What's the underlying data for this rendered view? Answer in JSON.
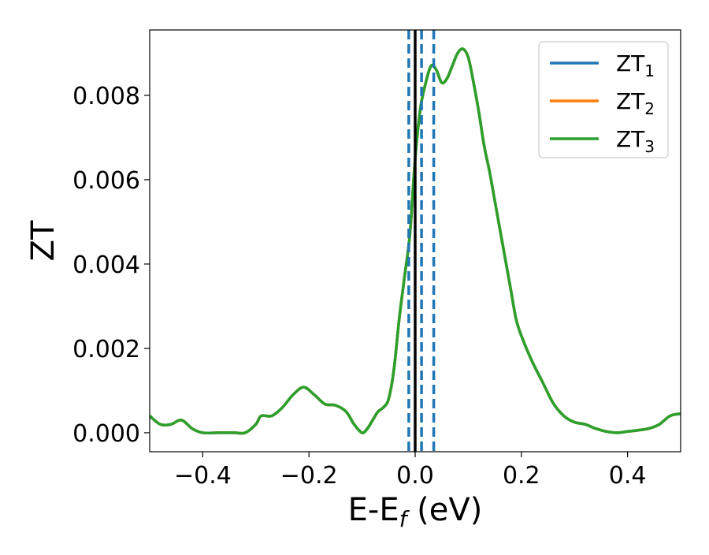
{
  "chart_data": {
    "type": "line",
    "title": "",
    "xlabel": "E-E",
    "xlabel_sub": "f",
    "xlabel_unit": " (eV)",
    "ylabel": "ZT",
    "xlim": [
      -0.5,
      0.5
    ],
    "ylim": [
      -0.00045,
      0.00955
    ],
    "x_ticks": [
      -0.4,
      -0.2,
      0.0,
      0.2,
      0.4
    ],
    "x_tick_labels": [
      "−0.4",
      "−0.2",
      "0.0",
      "0.2",
      "0.4"
    ],
    "y_ticks": [
      0.0,
      0.002,
      0.004,
      0.006,
      0.008
    ],
    "y_tick_labels": [
      "0.000",
      "0.002",
      "0.004",
      "0.006",
      "0.008"
    ],
    "grid": false,
    "legend": {
      "placement": "top-right"
    },
    "vertical_lines": [
      {
        "x": 0.0,
        "style": "solid",
        "color": "#000000"
      },
      {
        "x": -0.012,
        "style": "dashed",
        "color": "#1f77b4"
      },
      {
        "x": 0.012,
        "style": "dashed",
        "color": "#1f77b4"
      },
      {
        "x": 0.035,
        "style": "dashed",
        "color": "#1f77b4"
      }
    ],
    "series": [
      {
        "name": "ZT",
        "name_sub": "1",
        "color": "#1f77b4",
        "x": [
          -0.5,
          -0.48,
          -0.46,
          -0.44,
          -0.42,
          -0.4,
          -0.37,
          -0.34,
          -0.32,
          -0.3,
          -0.29,
          -0.27,
          -0.25,
          -0.23,
          -0.21,
          -0.19,
          -0.17,
          -0.15,
          -0.13,
          -0.115,
          -0.1,
          -0.09,
          -0.08,
          -0.07,
          -0.06,
          -0.05,
          -0.04,
          -0.03,
          -0.02,
          -0.01,
          0.0,
          0.01,
          0.02,
          0.03,
          0.04,
          0.05,
          0.06,
          0.07,
          0.08,
          0.09,
          0.1,
          0.11,
          0.12,
          0.13,
          0.14,
          0.15,
          0.16,
          0.17,
          0.18,
          0.19,
          0.2,
          0.22,
          0.24,
          0.26,
          0.28,
          0.3,
          0.32,
          0.34,
          0.36,
          0.38,
          0.4,
          0.42,
          0.44,
          0.46,
          0.48,
          0.5
        ],
        "y": [
          0.0004,
          0.0002,
          0.0002,
          0.0003,
          0.0001,
          0.0,
          0.0,
          0.0,
          0.0,
          0.0002,
          0.0004,
          0.0004,
          0.0006,
          0.0009,
          0.00108,
          0.0009,
          0.00068,
          0.00065,
          0.0005,
          0.0002,
          0.0,
          0.0001,
          0.0003,
          0.0005,
          0.0006,
          0.0008,
          0.0015,
          0.0027,
          0.0037,
          0.0047,
          0.0065,
          0.0077,
          0.0083,
          0.0087,
          0.0086,
          0.0083,
          0.0084,
          0.0087,
          0.009,
          0.0091,
          0.0089,
          0.0083,
          0.0076,
          0.0068,
          0.0062,
          0.0055,
          0.0048,
          0.0041,
          0.0034,
          0.0027,
          0.0023,
          0.0017,
          0.0012,
          0.0007,
          0.0004,
          0.00025,
          0.0002,
          0.0001,
          3e-05,
          0.0,
          3e-05,
          6e-05,
          0.0001,
          0.0002,
          0.0004,
          0.00045
        ]
      },
      {
        "name": "ZT",
        "name_sub": "2",
        "color": "#ff7f0e",
        "x": [
          -0.5,
          -0.48,
          -0.46,
          -0.44,
          -0.42,
          -0.4,
          -0.37,
          -0.34,
          -0.32,
          -0.3,
          -0.29,
          -0.27,
          -0.25,
          -0.23,
          -0.21,
          -0.19,
          -0.17,
          -0.15,
          -0.13,
          -0.115,
          -0.1,
          -0.09,
          -0.08,
          -0.07,
          -0.06,
          -0.05,
          -0.04,
          -0.03,
          -0.02,
          -0.01,
          0.0,
          0.01,
          0.02,
          0.03,
          0.04,
          0.05,
          0.06,
          0.07,
          0.08,
          0.09,
          0.1,
          0.11,
          0.12,
          0.13,
          0.14,
          0.15,
          0.16,
          0.17,
          0.18,
          0.19,
          0.2,
          0.22,
          0.24,
          0.26,
          0.28,
          0.3,
          0.32,
          0.34,
          0.36,
          0.38,
          0.4,
          0.42,
          0.44,
          0.46,
          0.48,
          0.5
        ],
        "y": [
          0.0004,
          0.0002,
          0.0002,
          0.0003,
          0.0001,
          0.0,
          0.0,
          0.0,
          0.0,
          0.0002,
          0.0004,
          0.0004,
          0.0006,
          0.0009,
          0.00108,
          0.0009,
          0.00068,
          0.00065,
          0.0005,
          0.0002,
          0.0,
          0.0001,
          0.0003,
          0.0005,
          0.0006,
          0.0008,
          0.0015,
          0.0027,
          0.0037,
          0.0047,
          0.0065,
          0.0077,
          0.0083,
          0.0087,
          0.0086,
          0.0083,
          0.0084,
          0.0087,
          0.009,
          0.0091,
          0.0089,
          0.0083,
          0.0076,
          0.0068,
          0.0062,
          0.0055,
          0.0048,
          0.0041,
          0.0034,
          0.0027,
          0.0023,
          0.0017,
          0.0012,
          0.0007,
          0.0004,
          0.00025,
          0.0002,
          0.0001,
          3e-05,
          0.0,
          3e-05,
          6e-05,
          0.0001,
          0.0002,
          0.0004,
          0.00045
        ]
      },
      {
        "name": "ZT",
        "name_sub": "3",
        "color": "#2ca02c",
        "x": [
          -0.5,
          -0.48,
          -0.46,
          -0.44,
          -0.42,
          -0.4,
          -0.37,
          -0.34,
          -0.32,
          -0.3,
          -0.29,
          -0.27,
          -0.25,
          -0.23,
          -0.21,
          -0.19,
          -0.17,
          -0.15,
          -0.13,
          -0.115,
          -0.1,
          -0.09,
          -0.08,
          -0.07,
          -0.06,
          -0.05,
          -0.04,
          -0.03,
          -0.02,
          -0.01,
          0.0,
          0.01,
          0.02,
          0.03,
          0.04,
          0.05,
          0.06,
          0.07,
          0.08,
          0.09,
          0.1,
          0.11,
          0.12,
          0.13,
          0.14,
          0.15,
          0.16,
          0.17,
          0.18,
          0.19,
          0.2,
          0.22,
          0.24,
          0.26,
          0.28,
          0.3,
          0.32,
          0.34,
          0.36,
          0.38,
          0.4,
          0.42,
          0.44,
          0.46,
          0.48,
          0.5
        ],
        "y": [
          0.0004,
          0.0002,
          0.0002,
          0.0003,
          0.0001,
          0.0,
          0.0,
          0.0,
          0.0,
          0.0002,
          0.0004,
          0.0004,
          0.0006,
          0.0009,
          0.00108,
          0.0009,
          0.00068,
          0.00065,
          0.0005,
          0.0002,
          0.0,
          0.0001,
          0.0003,
          0.0005,
          0.0006,
          0.0008,
          0.0015,
          0.0027,
          0.0037,
          0.0047,
          0.0065,
          0.0077,
          0.0083,
          0.0087,
          0.0086,
          0.0083,
          0.0084,
          0.0087,
          0.009,
          0.0091,
          0.0089,
          0.0083,
          0.0076,
          0.0068,
          0.0062,
          0.0055,
          0.0048,
          0.0041,
          0.0034,
          0.0027,
          0.0023,
          0.0017,
          0.0012,
          0.0007,
          0.0004,
          0.00025,
          0.0002,
          0.0001,
          3e-05,
          0.0,
          3e-05,
          6e-05,
          0.0001,
          0.0002,
          0.0004,
          0.00045
        ]
      }
    ]
  }
}
